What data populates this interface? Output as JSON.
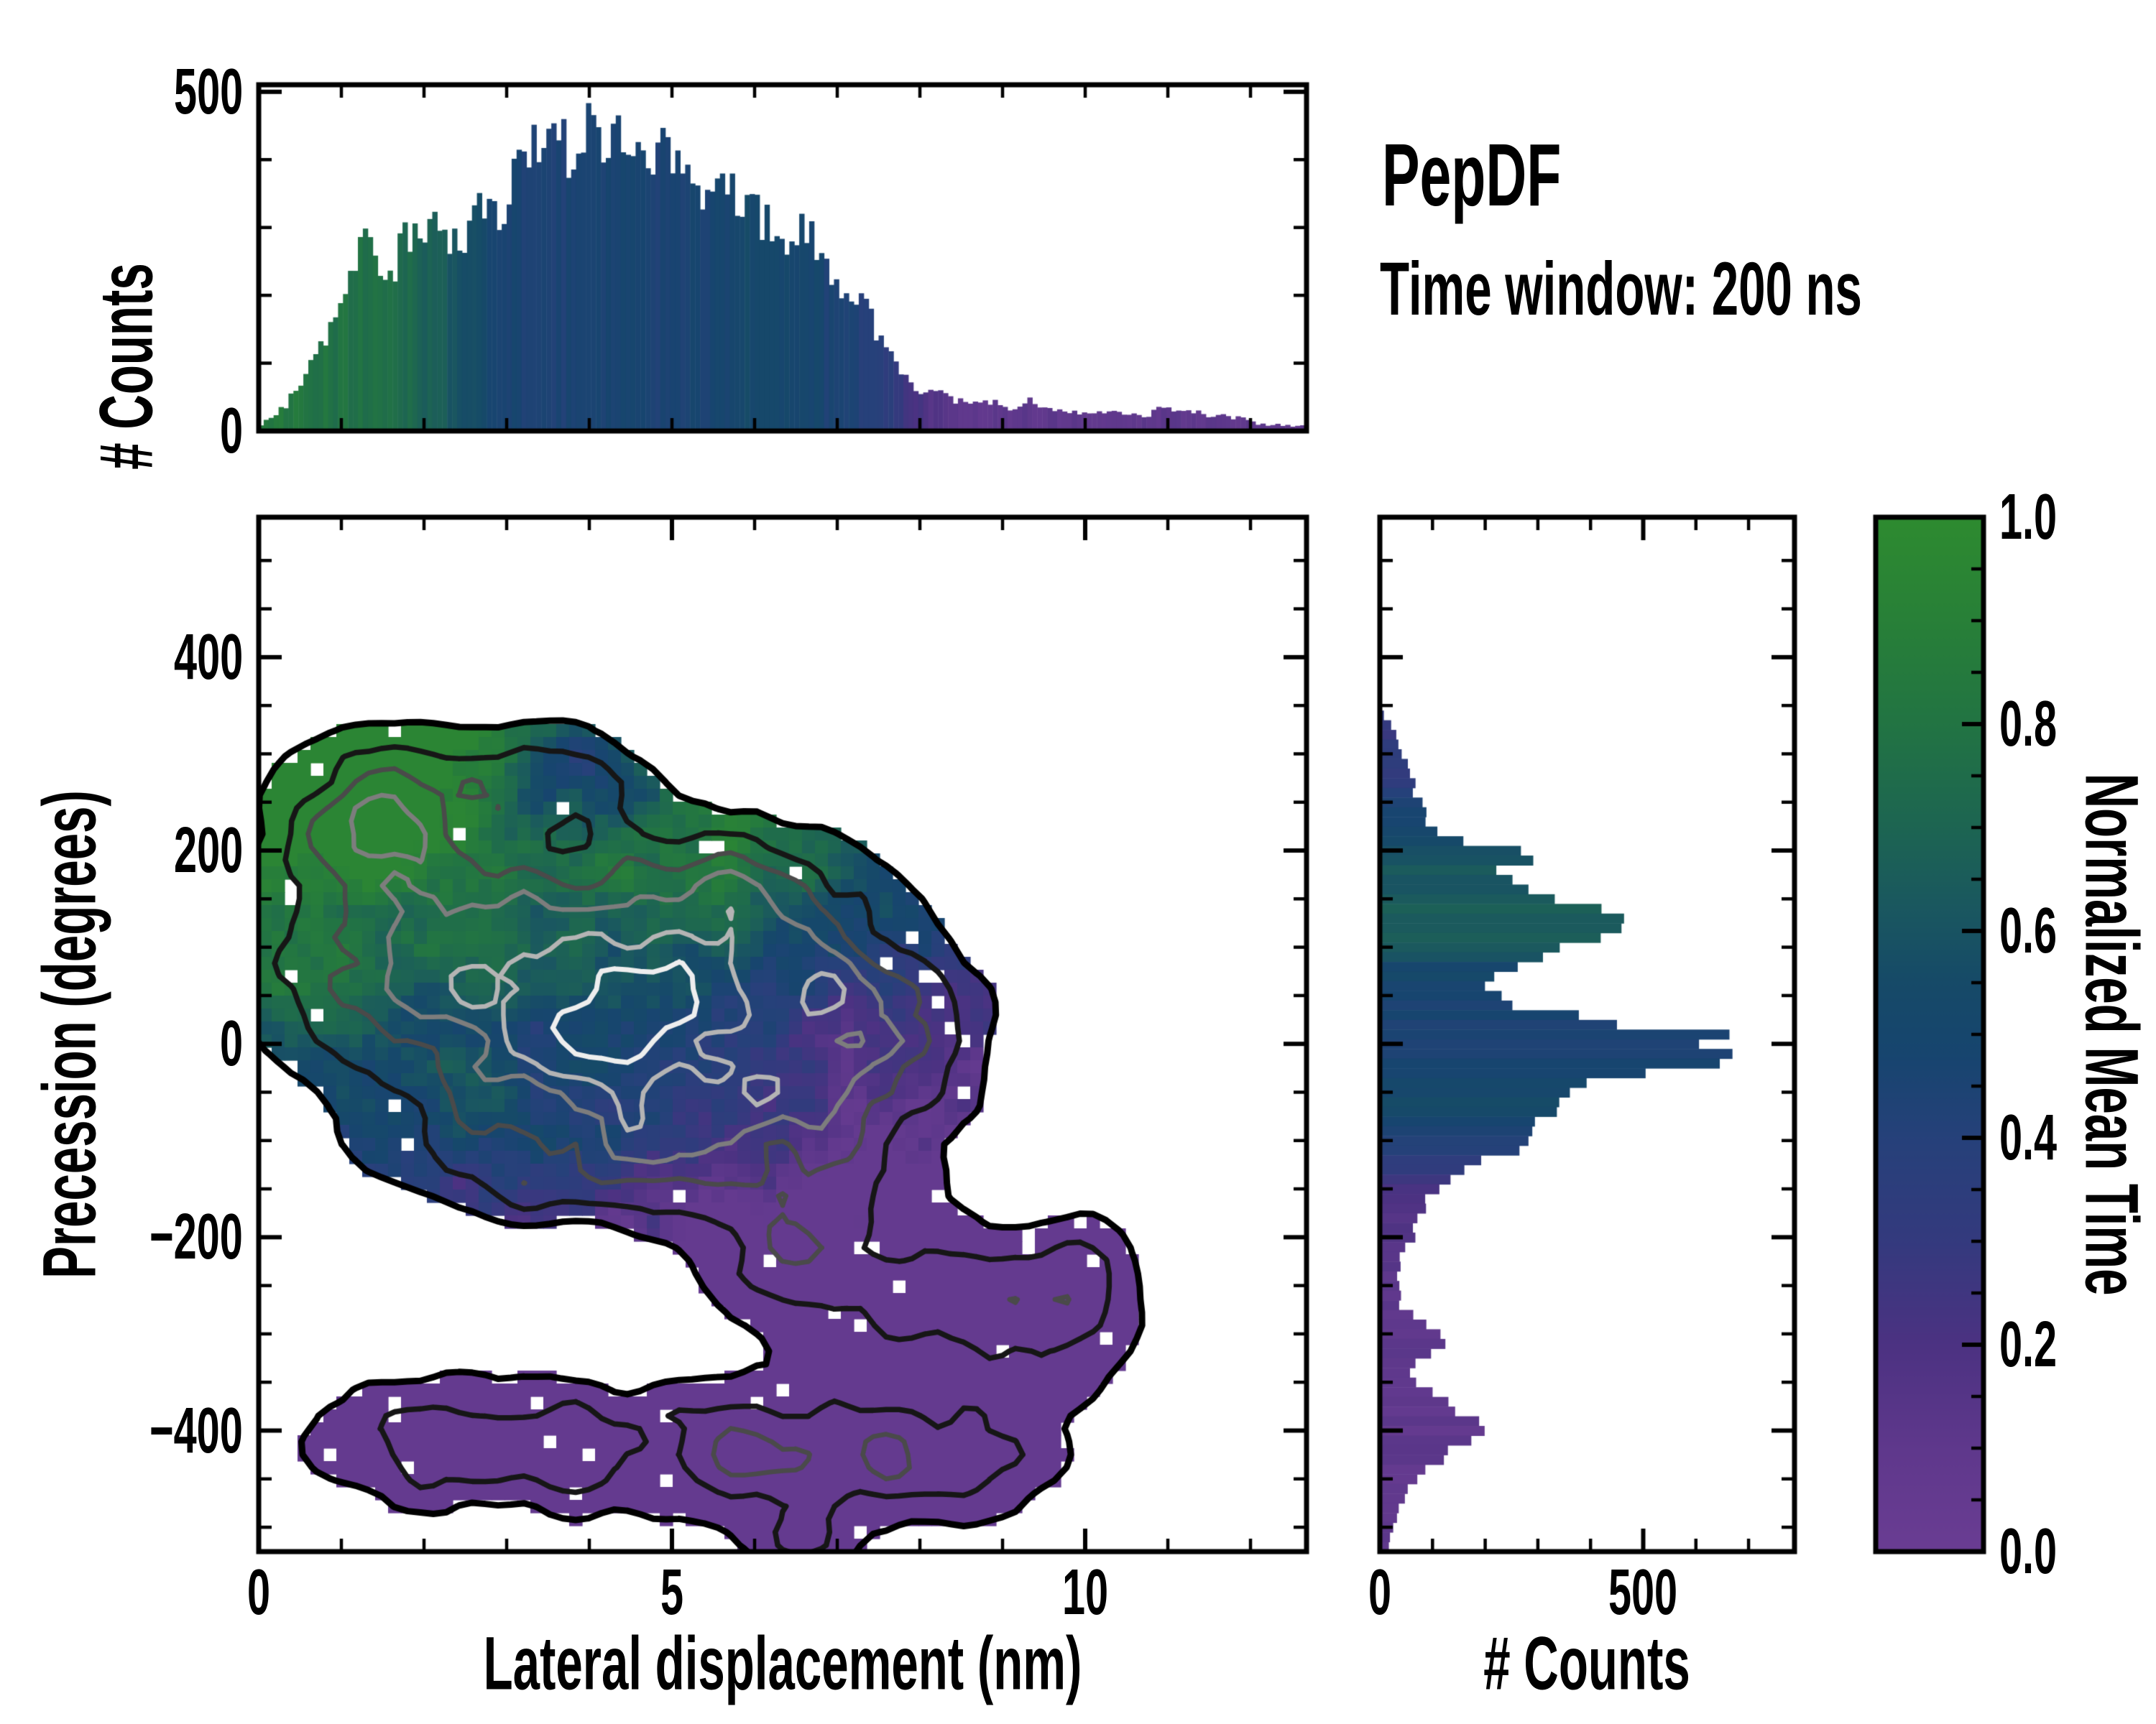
{
  "annotation": {
    "title": "PepDF",
    "subtitle": "Time window: 200 ns"
  },
  "labels": {
    "top_ylabel": "# Counts",
    "main_ylabel": "Precession (degrees)",
    "main_xlabel": "Lateral displacement (nm)",
    "right_xlabel": "# Counts",
    "cbar_label": "Normalized Mean Time"
  },
  "colormap": [
    [
      0.0,
      "#6a3d93"
    ],
    [
      0.1,
      "#5f388c"
    ],
    [
      0.2,
      "#4c3282"
    ],
    [
      0.3,
      "#343a7e"
    ],
    [
      0.4,
      "#26417a"
    ],
    [
      0.48,
      "#17456f"
    ],
    [
      0.55,
      "#164a68"
    ],
    [
      0.62,
      "#1a5760"
    ],
    [
      0.7,
      "#1d6552"
    ],
    [
      0.8,
      "#227443"
    ],
    [
      0.9,
      "#288038"
    ],
    [
      1.0,
      "#2e8b30"
    ]
  ],
  "chart_data": [
    {
      "id": "top_hist",
      "type": "bar",
      "xlabel": "",
      "ylabel": "# Counts",
      "xlim": [
        0,
        12.678
      ],
      "ylim": [
        0,
        510.4
      ],
      "bin_width_nm": 0.06,
      "yticks_major": [
        0,
        500
      ],
      "yticks_minor": [
        100,
        200,
        300,
        400
      ],
      "xticks_minor": [
        1,
        2,
        3,
        4,
        5,
        6,
        7,
        8,
        9,
        10,
        11,
        12
      ],
      "envelope_counts": [
        [
          0,
          5
        ],
        [
          0.25,
          30
        ],
        [
          0.5,
          62
        ],
        [
          0.75,
          120
        ],
        [
          1.0,
          205
        ],
        [
          1.2,
          255
        ],
        [
          1.35,
          290
        ],
        [
          1.5,
          250
        ],
        [
          1.65,
          245
        ],
        [
          1.8,
          290
        ],
        [
          2.0,
          300
        ],
        [
          2.15,
          330
        ],
        [
          2.3,
          275
        ],
        [
          2.45,
          280
        ],
        [
          2.6,
          310
        ],
        [
          2.75,
          345
        ],
        [
          2.9,
          320
        ],
        [
          3.05,
          345
        ],
        [
          3.2,
          410
        ],
        [
          3.35,
          425
        ],
        [
          3.5,
          415
        ],
        [
          3.65,
          440
        ],
        [
          3.8,
          405
        ],
        [
          3.95,
          430
        ],
        [
          4.1,
          465
        ],
        [
          4.25,
          430
        ],
        [
          4.4,
          445
        ],
        [
          4.55,
          425
        ],
        [
          4.7,
          390
        ],
        [
          4.85,
          410
        ],
        [
          5.0,
          395
        ],
        [
          5.15,
          370
        ],
        [
          5.3,
          360
        ],
        [
          5.45,
          350
        ],
        [
          5.6,
          365
        ],
        [
          5.75,
          340
        ],
        [
          5.9,
          330
        ],
        [
          6.05,
          315
        ],
        [
          6.2,
          300
        ],
        [
          6.35,
          280
        ],
        [
          6.5,
          290
        ],
        [
          6.65,
          300
        ],
        [
          6.8,
          255
        ],
        [
          6.95,
          235
        ],
        [
          7.1,
          215
        ],
        [
          7.25,
          195
        ],
        [
          7.4,
          170
        ],
        [
          7.55,
          130
        ],
        [
          7.7,
          100
        ],
        [
          7.85,
          75
        ],
        [
          8.0,
          60
        ],
        [
          8.15,
          65
        ],
        [
          8.3,
          50
        ],
        [
          8.5,
          45
        ],
        [
          8.7,
          40
        ],
        [
          8.9,
          42
        ],
        [
          9.1,
          35
        ],
        [
          9.3,
          45
        ],
        [
          9.5,
          35
        ],
        [
          9.7,
          30
        ],
        [
          9.9,
          25
        ],
        [
          10.1,
          30
        ],
        [
          10.3,
          28
        ],
        [
          10.5,
          25
        ],
        [
          10.7,
          20
        ],
        [
          10.9,
          38
        ],
        [
          11.1,
          30
        ],
        [
          11.3,
          28
        ],
        [
          11.5,
          25
        ],
        [
          11.7,
          22
        ],
        [
          11.9,
          18
        ],
        [
          12.1,
          12
        ],
        [
          12.3,
          10
        ],
        [
          12.5,
          8
        ],
        [
          12.678,
          5
        ]
      ],
      "mean_time_profile": [
        [
          0,
          0.84
        ],
        [
          0.5,
          0.82
        ],
        [
          1.0,
          0.78
        ],
        [
          1.5,
          0.75
        ],
        [
          1.8,
          0.72
        ],
        [
          2.1,
          0.66
        ],
        [
          2.4,
          0.6
        ],
        [
          2.6,
          0.54
        ],
        [
          2.8,
          0.5
        ],
        [
          3.0,
          0.47
        ],
        [
          3.5,
          0.45
        ],
        [
          4.0,
          0.45
        ],
        [
          4.5,
          0.46
        ],
        [
          5.0,
          0.46
        ],
        [
          5.5,
          0.48
        ],
        [
          5.8,
          0.52
        ],
        [
          6.2,
          0.53
        ],
        [
          6.6,
          0.5
        ],
        [
          6.9,
          0.46
        ],
        [
          7.2,
          0.44
        ],
        [
          7.5,
          0.38
        ],
        [
          7.7,
          0.32
        ],
        [
          7.9,
          0.26
        ],
        [
          8.1,
          0.18
        ],
        [
          8.3,
          0.13
        ],
        [
          8.6,
          0.11
        ],
        [
          9.0,
          0.1
        ],
        [
          13.0,
          0.09
        ]
      ],
      "value_jitter": 0.12,
      "color_jitter": 0.04,
      "seed": 7
    },
    {
      "id": "joint_heatmap",
      "type": "heatmap",
      "xlabel": "Lateral displacement (nm)",
      "ylabel": "Precession (degrees)",
      "xlim": [
        0,
        12.678
      ],
      "ylim": [
        -525.2,
        544.8
      ],
      "grid": {
        "nx": 81,
        "ny": 80
      },
      "xticks_major": [
        0,
        5,
        10
      ],
      "xticks_minor": [
        1,
        2,
        3,
        4,
        6,
        7,
        8,
        9,
        11,
        12
      ],
      "yticks_major": [
        400,
        200,
        0,
        -200,
        -400
      ],
      "ytick_minor_step": 50,
      "density_blobs": [
        {
          "cx": 1.5,
          "cy": 235,
          "sx": 0.9,
          "sy": 55,
          "a": 0.62
        },
        {
          "cx": 3.6,
          "cy": 270,
          "sx": 0.75,
          "sy": 45,
          "a": 0.42
        },
        {
          "cx": 2.0,
          "cy": 90,
          "sx": 1.35,
          "sy": 75,
          "a": 0.62
        },
        {
          "cx": 4.7,
          "cy": 30,
          "sx": 1.75,
          "sy": 80,
          "a": 1.25
        },
        {
          "cx": 5.7,
          "cy": 165,
          "sx": 1.0,
          "sy": 50,
          "a": 0.45
        },
        {
          "cx": 7.3,
          "cy": -20,
          "sx": 0.9,
          "sy": 80,
          "a": 0.5
        },
        {
          "cx": 4.2,
          "cy": -115,
          "sx": 1.7,
          "sy": 50,
          "a": 0.55
        },
        {
          "cx": 6.5,
          "cy": -215,
          "sx": 1.0,
          "sy": 50,
          "a": 0.42
        },
        {
          "cx": 8.4,
          "cy": -265,
          "sx": 1.0,
          "sy": 48,
          "a": 0.38
        },
        {
          "cx": 9.7,
          "cy": -300,
          "sx": 0.7,
          "sy": 45,
          "a": 0.26
        },
        {
          "cx": 10.0,
          "cy": -225,
          "sx": 0.45,
          "sy": 40,
          "a": 0.24
        },
        {
          "cx": 2.5,
          "cy": -410,
          "sx": 1.4,
          "sy": 48,
          "a": 0.45
        },
        {
          "cx": 6.3,
          "cy": -425,
          "sx": 1.6,
          "sy": 50,
          "a": 0.5
        },
        {
          "cx": 8.5,
          "cy": -425,
          "sx": 0.8,
          "sy": 48,
          "a": 0.33
        },
        {
          "cx": 6.6,
          "cy": -515,
          "sx": 0.45,
          "sy": 28,
          "a": 0.28
        },
        {
          "cx": 3.8,
          "cy": -255,
          "sx": 0.8,
          "sy": 40,
          "a": -0.28
        }
      ],
      "mean_time_field": {
        "base": 0.55,
        "ky": 0.0017,
        "kx": -0.05,
        "x0": 2.0,
        "blobs": [
          {
            "cx": 5.6,
            "cy": 150,
            "sx": 1.0,
            "sy": 55,
            "dt": 0.18
          },
          {
            "cx": 1.3,
            "cy": 240,
            "sx": 0.9,
            "sy": 70,
            "dt": 0.1
          },
          {
            "cx": 3.9,
            "cy": -75,
            "sx": 1.6,
            "sy": 45,
            "dt": 0.14
          },
          {
            "cx": 3.8,
            "cy": 290,
            "sx": 0.7,
            "sy": 55,
            "dt": -0.45
          },
          {
            "cx": 7.6,
            "cy": 30,
            "sx": 1.0,
            "sy": 90,
            "dt": -0.1
          }
        ],
        "noise_amp": 0.22,
        "cell_jitter": 0.1
      },
      "fill_threshold": 0.15,
      "noise": {
        "mul_lo": 0.55,
        "mul_hi": 1.35,
        "lattice1": 4,
        "lattice2": 2,
        "w1": 0.7,
        "w2": 0.3
      },
      "dropout_p": 0.035,
      "contour_levels": [
        {
          "level": 0.15,
          "color": "#000000",
          "lw": 9
        },
        {
          "level": 0.32,
          "color": "#161616",
          "lw": 7.5
        },
        {
          "level": 0.52,
          "color": "#4a4a4a",
          "lw": 6.5
        },
        {
          "level": 0.74,
          "color": "#7d7d7d",
          "lw": 6.5
        },
        {
          "level": 0.98,
          "color": "#b4b4b4",
          "lw": 6.5
        },
        {
          "level": 1.3,
          "color": "#eeeeee",
          "lw": 7
        }
      ],
      "seed": 11
    },
    {
      "id": "right_hist",
      "type": "bar",
      "orientation": "horizontal",
      "xlabel": "# Counts",
      "ylabel": "",
      "xlim": [
        0,
        787.2
      ],
      "ylim": [
        -525.2,
        544.8
      ],
      "bin_width_deg": 10,
      "xticks_major": [
        0,
        500
      ],
      "xticks_minor": [
        100,
        200,
        300,
        400,
        600,
        700
      ],
      "envelope_counts": [
        [
          345,
          0
        ],
        [
          335,
          15
        ],
        [
          325,
          30
        ],
        [
          315,
          35
        ],
        [
          300,
          45
        ],
        [
          285,
          58
        ],
        [
          270,
          65
        ],
        [
          255,
          72
        ],
        [
          240,
          85
        ],
        [
          225,
          95
        ],
        [
          210,
          160
        ],
        [
          200,
          280
        ],
        [
          193,
          350
        ],
        [
          185,
          230
        ],
        [
          172,
          240
        ],
        [
          160,
          265
        ],
        [
          148,
          320
        ],
        [
          136,
          430
        ],
        [
          125,
          500
        ],
        [
          114,
          465
        ],
        [
          103,
          385
        ],
        [
          92,
          295
        ],
        [
          80,
          260
        ],
        [
          68,
          190
        ],
        [
          56,
          185
        ],
        [
          45,
          235
        ],
        [
          33,
          325
        ],
        [
          20,
          460
        ],
        [
          12,
          580
        ],
        [
          8,
          700
        ],
        [
          4,
          716
        ],
        [
          0,
          645
        ],
        [
          -8,
          605
        ],
        [
          -15,
          660
        ],
        [
          -27,
          535
        ],
        [
          -38,
          405
        ],
        [
          -50,
          365
        ],
        [
          -62,
          375
        ],
        [
          -73,
          330
        ],
        [
          -85,
          285
        ],
        [
          -97,
          290
        ],
        [
          -109,
          250
        ],
        [
          -120,
          200
        ],
        [
          -132,
          160
        ],
        [
          -144,
          128
        ],
        [
          -156,
          92
        ],
        [
          -168,
          90
        ],
        [
          -179,
          72
        ],
        [
          -191,
          60
        ],
        [
          -203,
          65
        ],
        [
          -215,
          42
        ],
        [
          -230,
          36
        ],
        [
          -245,
          32
        ],
        [
          -260,
          38
        ],
        [
          -273,
          40
        ],
        [
          -285,
          75
        ],
        [
          -295,
          110
        ],
        [
          -305,
          140
        ],
        [
          -315,
          120
        ],
        [
          -330,
          65
        ],
        [
          -345,
          55
        ],
        [
          -360,
          95
        ],
        [
          -375,
          140
        ],
        [
          -390,
          175
        ],
        [
          -400,
          190
        ],
        [
          -410,
          165
        ],
        [
          -425,
          120
        ],
        [
          -440,
          90
        ],
        [
          -455,
          65
        ],
        [
          -470,
          45
        ],
        [
          -485,
          35
        ],
        [
          -500,
          25
        ],
        [
          -515,
          18
        ],
        [
          -525,
          12
        ]
      ],
      "mean_time_profile": [
        [
          345,
          0.3
        ],
        [
          300,
          0.32
        ],
        [
          270,
          0.36
        ],
        [
          245,
          0.42
        ],
        [
          225,
          0.48
        ],
        [
          210,
          0.55
        ],
        [
          195,
          0.6
        ],
        [
          180,
          0.62
        ],
        [
          165,
          0.6
        ],
        [
          150,
          0.63
        ],
        [
          135,
          0.64
        ],
        [
          120,
          0.66
        ],
        [
          105,
          0.62
        ],
        [
          95,
          0.58
        ],
        [
          85,
          0.54
        ],
        [
          70,
          0.5
        ],
        [
          55,
          0.47
        ],
        [
          40,
          0.45
        ],
        [
          25,
          0.44
        ],
        [
          10,
          0.44
        ],
        [
          -5,
          0.44
        ],
        [
          -20,
          0.45
        ],
        [
          -35,
          0.5
        ],
        [
          -50,
          0.55
        ],
        [
          -65,
          0.57
        ],
        [
          -80,
          0.52
        ],
        [
          -95,
          0.46
        ],
        [
          -110,
          0.4
        ],
        [
          -125,
          0.33
        ],
        [
          -140,
          0.27
        ],
        [
          -155,
          0.22
        ],
        [
          -170,
          0.18
        ],
        [
          -185,
          0.16
        ],
        [
          -200,
          0.14
        ],
        [
          -230,
          0.12
        ],
        [
          -280,
          0.1
        ],
        [
          -525,
          0.08
        ]
      ],
      "value_jitter": 0.09,
      "color_jitter": 0.04,
      "seed": 23
    },
    {
      "id": "colorbar",
      "type": "colorbar",
      "label": "Normalized Mean Time",
      "lim": [
        0.0,
        1.0
      ],
      "ticks_major": [
        0.0,
        0.2,
        0.4,
        0.6,
        0.8,
        1.0
      ],
      "tick_minor_step": 0.05
    }
  ]
}
